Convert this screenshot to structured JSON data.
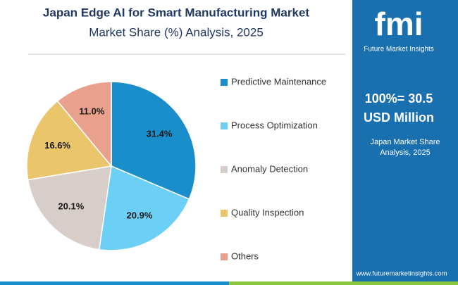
{
  "chart_data": {
    "type": "pie",
    "title": "Japan Edge AI for Smart Manufacturing Market",
    "subtitle": "Market Share (%) Analysis, 2025",
    "categories": [
      "Predictive Maintenance",
      "Process Optimization",
      "Anomaly Detection",
      "Quality Inspection",
      "Others"
    ],
    "values": [
      31.4,
      20.9,
      20.1,
      16.6,
      11.0
    ],
    "value_labels": [
      "31.4%",
      "20.9%",
      "20.1%",
      "16.6%",
      "11.0%"
    ],
    "colors": [
      "#1a8dcb",
      "#6ccff5",
      "#d7cdc9",
      "#eac56b",
      "#e9a08c"
    ],
    "legend": "right"
  },
  "sidebar": {
    "logo": "fmi",
    "brand": "Future Market Insights",
    "total": "100%= 30.5",
    "unit": "USD Million",
    "note": "Japan Market Share Analysis, 2025",
    "url": "www.futuremarketinsights.com"
  }
}
